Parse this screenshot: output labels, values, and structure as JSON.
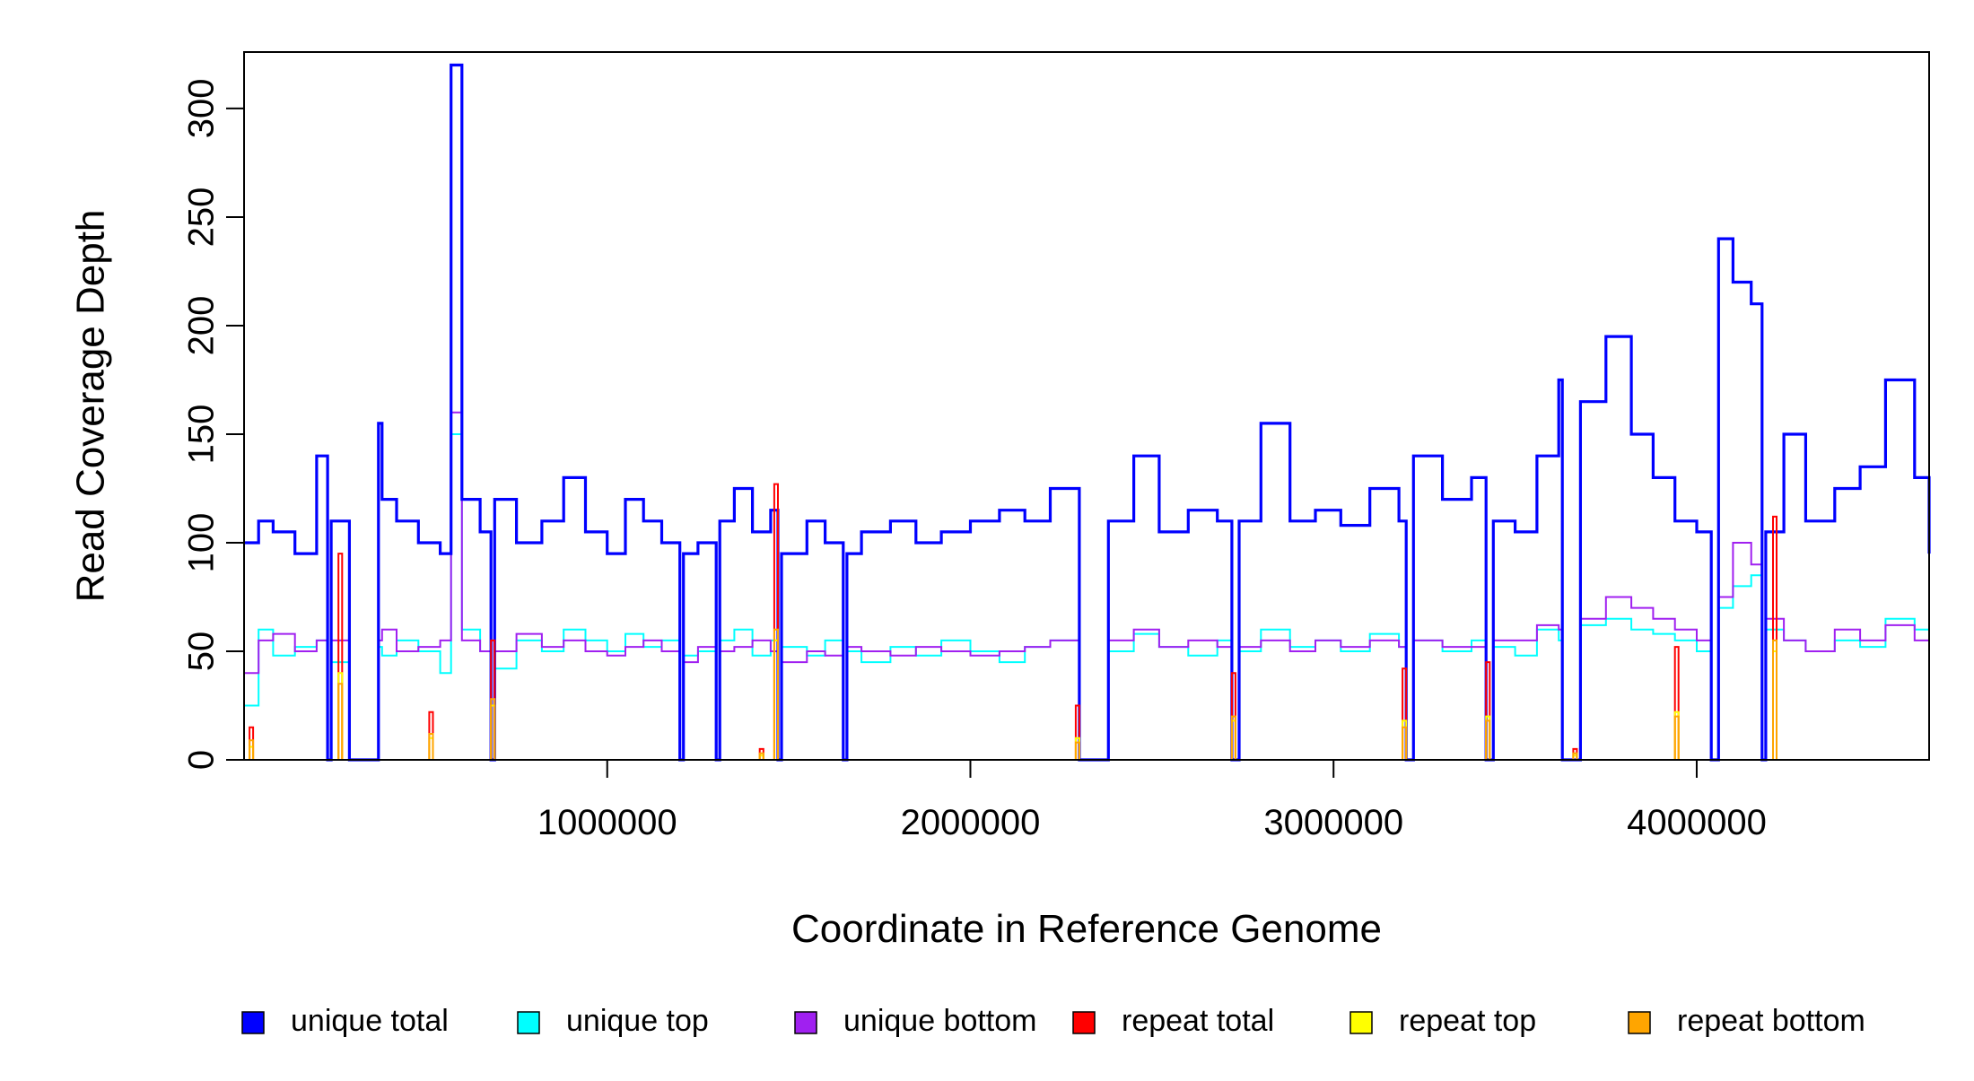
{
  "chart_data": {
    "type": "line",
    "style": "step",
    "title": "",
    "xlabel": "Coordinate in Reference Genome",
    "ylabel": "Read Coverage Depth",
    "xlim": [
      0,
      4640000
    ],
    "ylim": [
      0,
      326
    ],
    "x_ticks": [
      {
        "value": 1000000,
        "label": "1000000"
      },
      {
        "value": 2000000,
        "label": "2000000"
      },
      {
        "value": 3000000,
        "label": "3000000"
      },
      {
        "value": 4000000,
        "label": "4000000"
      }
    ],
    "y_ticks": [
      {
        "value": 0,
        "label": "0"
      },
      {
        "value": 50,
        "label": "50"
      },
      {
        "value": 100,
        "label": "100"
      },
      {
        "value": 150,
        "label": "150"
      },
      {
        "value": 200,
        "label": "200"
      },
      {
        "value": 250,
        "label": "250"
      },
      {
        "value": 300,
        "label": "300"
      }
    ],
    "legend_position": "bottom",
    "series": [
      {
        "name": "unique top",
        "color": "#00ffff",
        "x": [
          0,
          40000,
          80000,
          140000,
          200000,
          230000,
          240000,
          290000,
          370000,
          380000,
          420000,
          480000,
          540000,
          570000,
          600000,
          650000,
          680000,
          690000,
          750000,
          820000,
          880000,
          940000,
          1000000,
          1050000,
          1100000,
          1150000,
          1200000,
          1210000,
          1250000,
          1300000,
          1310000,
          1350000,
          1400000,
          1450000,
          1470000,
          1480000,
          1550000,
          1600000,
          1650000,
          1660000,
          1700000,
          1780000,
          1850000,
          1920000,
          2000000,
          2080000,
          2150000,
          2220000,
          2300000,
          2380000,
          2450000,
          2520000,
          2600000,
          2680000,
          2720000,
          2740000,
          2800000,
          2880000,
          2950000,
          3020000,
          3100000,
          3180000,
          3200000,
          3220000,
          3300000,
          3380000,
          3420000,
          3440000,
          3500000,
          3560000,
          3620000,
          3630000,
          3680000,
          3750000,
          3820000,
          3880000,
          3940000,
          4000000,
          4040000,
          4060000,
          4100000,
          4150000,
          4180000,
          4190000,
          4240000,
          4300000,
          4380000,
          4450000,
          4520000,
          4600000,
          4640000
        ],
        "y": [
          25,
          60,
          48,
          52,
          55,
          0,
          45,
          0,
          52,
          48,
          55,
          50,
          40,
          150,
          60,
          50,
          0,
          42,
          55,
          50,
          60,
          55,
          50,
          58,
          52,
          55,
          0,
          48,
          50,
          0,
          55,
          60,
          48,
          55,
          0,
          52,
          48,
          55,
          0,
          50,
          45,
          52,
          48,
          55,
          50,
          45,
          52,
          55,
          0,
          50,
          58,
          52,
          48,
          55,
          0,
          50,
          60,
          52,
          55,
          50,
          58,
          52,
          0,
          55,
          50,
          55,
          0,
          52,
          48,
          60,
          55,
          0,
          62,
          65,
          60,
          58,
          55,
          50,
          0,
          70,
          80,
          85,
          0,
          60,
          55,
          50,
          55,
          52,
          65,
          60,
          55
        ]
      },
      {
        "name": "unique bottom",
        "color": "#a020f0",
        "x": [
          0,
          40000,
          80000,
          140000,
          200000,
          230000,
          240000,
          290000,
          370000,
          380000,
          420000,
          480000,
          540000,
          570000,
          600000,
          650000,
          680000,
          690000,
          750000,
          820000,
          880000,
          940000,
          1000000,
          1050000,
          1100000,
          1150000,
          1200000,
          1210000,
          1250000,
          1300000,
          1310000,
          1350000,
          1400000,
          1450000,
          1470000,
          1480000,
          1550000,
          1600000,
          1650000,
          1660000,
          1700000,
          1780000,
          1850000,
          1920000,
          2000000,
          2080000,
          2150000,
          2220000,
          2300000,
          2380000,
          2450000,
          2520000,
          2600000,
          2680000,
          2720000,
          2740000,
          2800000,
          2880000,
          2950000,
          3020000,
          3100000,
          3180000,
          3200000,
          3220000,
          3300000,
          3380000,
          3420000,
          3440000,
          3500000,
          3560000,
          3620000,
          3630000,
          3680000,
          3750000,
          3820000,
          3880000,
          3940000,
          4000000,
          4040000,
          4060000,
          4100000,
          4150000,
          4180000,
          4190000,
          4240000,
          4300000,
          4380000,
          4450000,
          4520000,
          4600000,
          4640000
        ],
        "y": [
          40,
          55,
          58,
          50,
          55,
          0,
          55,
          0,
          55,
          60,
          50,
          52,
          55,
          160,
          55,
          50,
          0,
          50,
          58,
          52,
          55,
          50,
          48,
          52,
          55,
          50,
          0,
          45,
          52,
          0,
          50,
          52,
          55,
          50,
          0,
          45,
          50,
          48,
          0,
          52,
          50,
          48,
          52,
          50,
          48,
          50,
          52,
          55,
          0,
          55,
          60,
          52,
          55,
          52,
          0,
          52,
          55,
          50,
          55,
          52,
          55,
          52,
          0,
          55,
          52,
          52,
          0,
          55,
          55,
          62,
          60,
          0,
          65,
          75,
          70,
          65,
          60,
          55,
          0,
          75,
          100,
          90,
          0,
          65,
          55,
          50,
          60,
          55,
          62,
          55,
          45
        ]
      },
      {
        "name": "unique total",
        "color": "#0000ff",
        "x": [
          0,
          40000,
          80000,
          140000,
          200000,
          230000,
          240000,
          290000,
          370000,
          380000,
          420000,
          480000,
          540000,
          570000,
          600000,
          650000,
          680000,
          690000,
          750000,
          820000,
          880000,
          940000,
          1000000,
          1050000,
          1100000,
          1150000,
          1200000,
          1210000,
          1250000,
          1300000,
          1310000,
          1350000,
          1400000,
          1450000,
          1470000,
          1480000,
          1550000,
          1600000,
          1650000,
          1660000,
          1700000,
          1780000,
          1850000,
          1920000,
          2000000,
          2080000,
          2150000,
          2220000,
          2300000,
          2380000,
          2450000,
          2520000,
          2600000,
          2680000,
          2720000,
          2740000,
          2800000,
          2880000,
          2950000,
          3020000,
          3100000,
          3180000,
          3200000,
          3220000,
          3300000,
          3380000,
          3420000,
          3440000,
          3500000,
          3560000,
          3620000,
          3630000,
          3680000,
          3750000,
          3820000,
          3880000,
          3940000,
          4000000,
          4040000,
          4060000,
          4100000,
          4150000,
          4180000,
          4190000,
          4240000,
          4300000,
          4380000,
          4450000,
          4520000,
          4600000,
          4640000
        ],
        "y": [
          100,
          110,
          105,
          95,
          140,
          0,
          110,
          0,
          155,
          120,
          110,
          100,
          95,
          320,
          120,
          105,
          0,
          120,
          100,
          110,
          130,
          105,
          95,
          120,
          110,
          100,
          0,
          95,
          100,
          0,
          110,
          125,
          105,
          115,
          0,
          95,
          110,
          100,
          0,
          95,
          105,
          110,
          100,
          105,
          110,
          115,
          110,
          125,
          0,
          110,
          140,
          105,
          115,
          110,
          0,
          110,
          155,
          110,
          115,
          108,
          125,
          110,
          0,
          140,
          120,
          130,
          0,
          110,
          105,
          140,
          175,
          0,
          165,
          195,
          150,
          130,
          110,
          105,
          0,
          240,
          220,
          210,
          0,
          105,
          150,
          110,
          125,
          135,
          175,
          130,
          95
        ]
      },
      {
        "name": "repeat total",
        "color": "#ff0000",
        "x": [
          0,
          15000,
          25000,
          260000,
          270000,
          510000,
          520000,
          680000,
          690000,
          1420000,
          1430000,
          1460000,
          1470000,
          2290000,
          2300000,
          2720000,
          2730000,
          3190000,
          3200000,
          3420000,
          3430000,
          3660000,
          3670000,
          3940000,
          3950000,
          4210000,
          4220000,
          4640000
        ],
        "y": [
          0,
          15,
          0,
          95,
          0,
          22,
          0,
          55,
          0,
          5,
          0,
          127,
          0,
          25,
          0,
          40,
          0,
          42,
          0,
          45,
          0,
          5,
          0,
          52,
          0,
          112,
          0,
          0
        ]
      },
      {
        "name": "repeat top",
        "color": "#ffff00",
        "x": [
          0,
          15000,
          25000,
          260000,
          270000,
          510000,
          520000,
          680000,
          690000,
          1420000,
          1430000,
          1460000,
          1470000,
          2290000,
          2300000,
          2720000,
          2730000,
          3190000,
          3200000,
          3420000,
          3430000,
          3660000,
          3670000,
          3940000,
          3950000,
          4210000,
          4220000,
          4640000
        ],
        "y": [
          0,
          6,
          0,
          40,
          0,
          10,
          0,
          25,
          0,
          2,
          0,
          55,
          0,
          10,
          0,
          18,
          0,
          18,
          0,
          20,
          0,
          2,
          0,
          22,
          0,
          50,
          0,
          0
        ]
      },
      {
        "name": "repeat bottom",
        "color": "#ffa500",
        "x": [
          0,
          15000,
          25000,
          260000,
          270000,
          510000,
          520000,
          680000,
          690000,
          1420000,
          1430000,
          1460000,
          1470000,
          2290000,
          2300000,
          2720000,
          2730000,
          3190000,
          3200000,
          3420000,
          3430000,
          3660000,
          3670000,
          3940000,
          3950000,
          4210000,
          4220000,
          4640000
        ],
        "y": [
          0,
          9,
          0,
          35,
          0,
          12,
          0,
          28,
          0,
          3,
          0,
          60,
          0,
          8,
          0,
          20,
          0,
          15,
          0,
          18,
          0,
          3,
          0,
          20,
          0,
          55,
          0,
          0
        ]
      }
    ],
    "legend": [
      {
        "label": "unique total",
        "color": "#0000ff"
      },
      {
        "label": "unique top",
        "color": "#00ffff"
      },
      {
        "label": "unique bottom",
        "color": "#a020f0"
      },
      {
        "label": "repeat total",
        "color": "#ff0000"
      },
      {
        "label": "repeat top",
        "color": "#ffff00"
      },
      {
        "label": "repeat bottom",
        "color": "#ffa500"
      }
    ]
  }
}
